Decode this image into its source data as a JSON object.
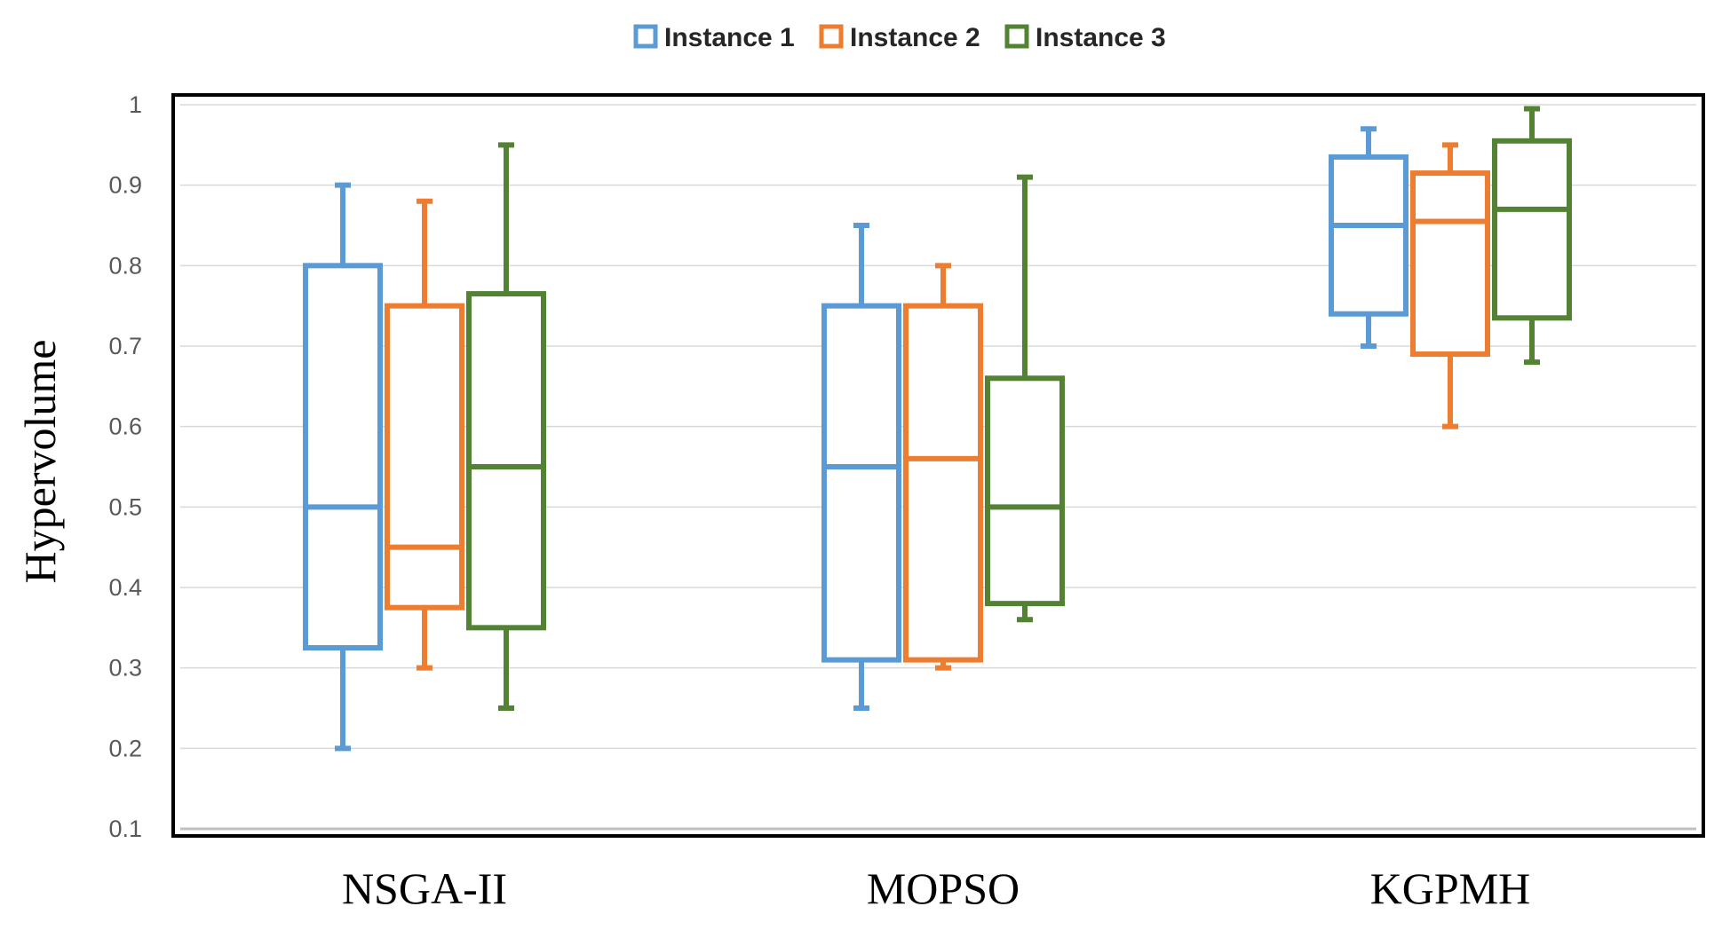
{
  "chart_data": {
    "type": "box",
    "title": "",
    "xlabel": "",
    "ylabel": "Hypervolume",
    "ylim": [
      0.1,
      1.0
    ],
    "yticks": [
      "0.1",
      "0.2",
      "0.3",
      "0.4",
      "0.5",
      "0.6",
      "0.7",
      "0.8",
      "0.9",
      "1"
    ],
    "categories": [
      "NSGA-II",
      "MOPSO",
      "KGPMH"
    ],
    "grid": true,
    "legend_position": "top-center",
    "series": [
      {
        "name": "Instance 1",
        "color": "#5B9BD5",
        "boxes": [
          {
            "min": 0.2,
            "q1": 0.325,
            "median": 0.5,
            "q3": 0.8,
            "max": 0.9
          },
          {
            "min": 0.25,
            "q1": 0.31,
            "median": 0.55,
            "q3": 0.75,
            "max": 0.85
          },
          {
            "min": 0.7,
            "q1": 0.74,
            "median": 0.85,
            "q3": 0.935,
            "max": 0.97
          }
        ]
      },
      {
        "name": "Instance 2",
        "color": "#ED7D31",
        "boxes": [
          {
            "min": 0.3,
            "q1": 0.375,
            "median": 0.45,
            "q3": 0.75,
            "max": 0.88
          },
          {
            "min": 0.3,
            "q1": 0.31,
            "median": 0.56,
            "q3": 0.75,
            "max": 0.8
          },
          {
            "min": 0.6,
            "q1": 0.69,
            "median": 0.855,
            "q3": 0.915,
            "max": 0.95
          }
        ]
      },
      {
        "name": "Instance 3",
        "color": "#548235",
        "boxes": [
          {
            "min": 0.25,
            "q1": 0.35,
            "median": 0.55,
            "q3": 0.765,
            "max": 0.95
          },
          {
            "min": 0.36,
            "q1": 0.38,
            "median": 0.5,
            "q3": 0.66,
            "max": 0.91
          },
          {
            "min": 0.68,
            "q1": 0.735,
            "median": 0.87,
            "q3": 0.955,
            "max": 0.995
          }
        ]
      }
    ]
  }
}
